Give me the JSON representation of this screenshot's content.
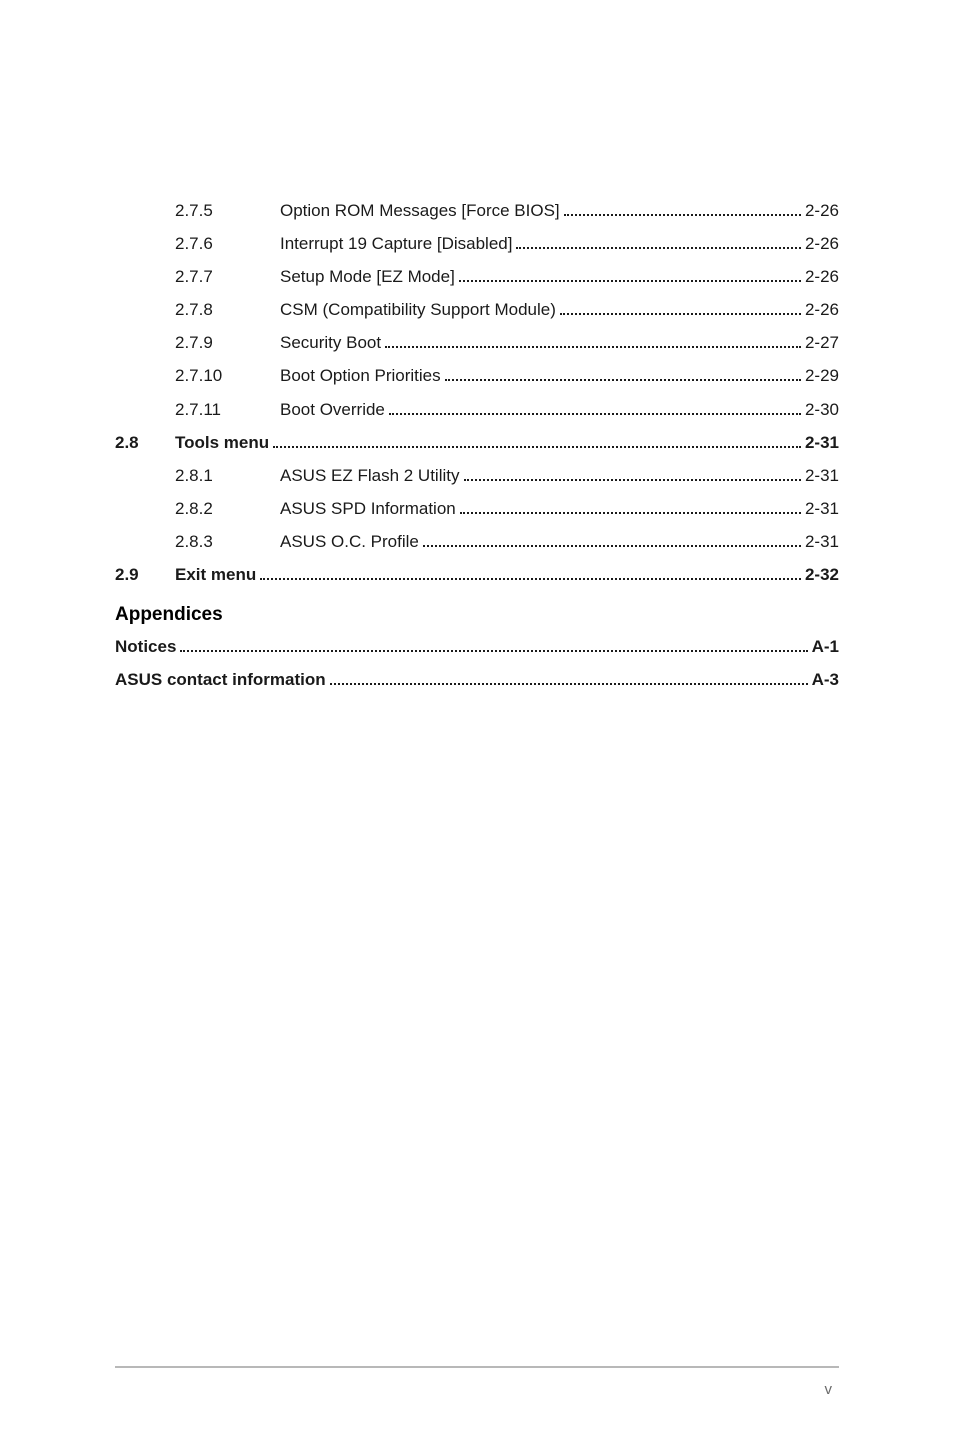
{
  "toc": {
    "sub_entries_1": [
      {
        "num": "2.7.5",
        "title": "Option ROM Messages [Force BIOS]",
        "page": "2-26"
      },
      {
        "num": "2.7.6",
        "title": "Interrupt 19 Capture [Disabled]",
        "page": "2-26"
      },
      {
        "num": "2.7.7",
        "title": "Setup Mode [EZ Mode]",
        "page": "2-26"
      },
      {
        "num": "2.7.8",
        "title": "CSM (Compatibility Support Module)",
        "page": "2-26"
      },
      {
        "num": "2.7.9",
        "title": "Security Boot",
        "page": "2-27"
      },
      {
        "num": "2.7.10",
        "title": "Boot Option Priorities",
        "page": "2-29"
      },
      {
        "num": "2.7.11",
        "title": "Boot Override",
        "page": "2-30"
      }
    ],
    "section_28": {
      "num": "2.8",
      "title": "Tools menu",
      "page": "2-31"
    },
    "sub_entries_28": [
      {
        "num": "2.8.1",
        "title": "ASUS EZ Flash 2 Utility",
        "page": "2-31"
      },
      {
        "num": "2.8.2",
        "title": "ASUS SPD Information",
        "page": "2-31"
      },
      {
        "num": "2.8.3",
        "title": "ASUS O.C. Profile",
        "page": "2-31"
      }
    ],
    "section_29": {
      "num": "2.9",
      "title": "Exit menu",
      "page": "2-32"
    },
    "appendices_heading": "Appendices",
    "appendix_entries": [
      {
        "title": "Notices",
        "page": "A-1"
      },
      {
        "title": "ASUS contact information",
        "page": "A-3"
      }
    ]
  },
  "footer": {
    "page_number": "v"
  },
  "colors": {
    "text": "#1a1a1a",
    "rule": "#b8b8b8",
    "footer_text": "#6a6a6a",
    "background": "#ffffff"
  }
}
